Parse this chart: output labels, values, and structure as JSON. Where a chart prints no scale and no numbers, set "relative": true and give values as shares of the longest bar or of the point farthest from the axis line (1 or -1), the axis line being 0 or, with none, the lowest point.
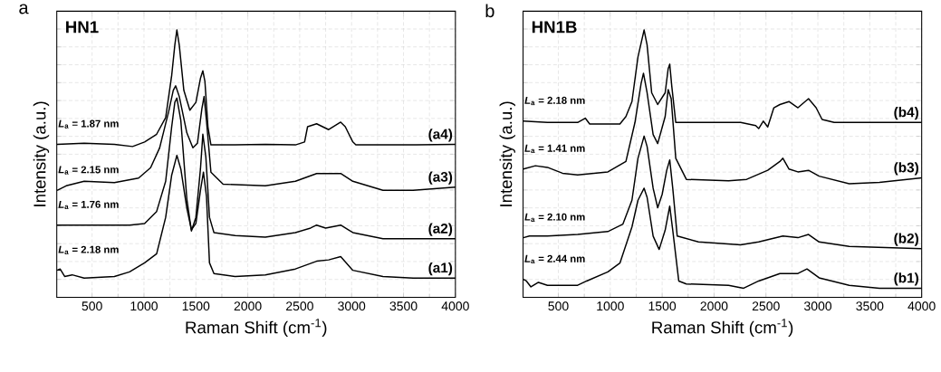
{
  "chart_data": [
    {
      "type": "line",
      "title": "HN1",
      "xlabel": "Raman Shift (cm$^{-1}$)",
      "ylabel": "Intensity (a.u.)",
      "relative": true,
      "xlim": [
        160,
        4000
      ],
      "xticks": [
        500,
        1000,
        1500,
        2000,
        2500,
        3000,
        3500,
        4000
      ],
      "grid": true,
      "series": [
        {
          "name": "(a1)",
          "color": "#000000",
          "x": [
            163,
            192,
            236,
            308,
            424,
            715,
            861,
            1006,
            1122,
            1209,
            1267,
            1317,
            1355,
            1413,
            1457,
            1500,
            1544,
            1573,
            1602,
            1631,
            1674,
            1878,
            2169,
            2459,
            2663,
            2779,
            2895,
            3012,
            3302,
            3593,
            4000
          ],
          "values": [
            0.101,
            0.106,
            0.078,
            0.084,
            0.072,
            0.078,
            0.095,
            0.129,
            0.163,
            0.299,
            0.457,
            0.531,
            0.48,
            0.333,
            0.253,
            0.276,
            0.4,
            0.468,
            0.378,
            0.129,
            0.089,
            0.078,
            0.084,
            0.106,
            0.135,
            0.14,
            0.152,
            0.101,
            0.078,
            0.072,
            0.072
          ]
        },
        {
          "name": "(a2)",
          "color": "#000000",
          "x": [
            163,
            424,
            861,
            1006,
            1122,
            1209,
            1267,
            1297,
            1317,
            1355,
            1413,
            1457,
            1500,
            1544,
            1567,
            1596,
            1631,
            1674,
            1878,
            2169,
            2459,
            2605,
            2663,
            2750,
            2895,
            3012,
            3302,
            4000
          ],
          "values": [
            0.27,
            0.27,
            0.27,
            0.276,
            0.321,
            0.434,
            0.638,
            0.729,
            0.745,
            0.661,
            0.367,
            0.248,
            0.299,
            0.48,
            0.61,
            0.525,
            0.299,
            0.242,
            0.231,
            0.225,
            0.242,
            0.259,
            0.27,
            0.259,
            0.27,
            0.242,
            0.219,
            0.219
          ]
        },
        {
          "name": "(a3)",
          "color": "#000000",
          "x": [
            163,
            250,
            424,
            715,
            948,
            1064,
            1151,
            1238,
            1282,
            1305,
            1340,
            1413,
            1471,
            1515,
            1558,
            1579,
            1602,
            1645,
            1762,
            2169,
            2459,
            2663,
            2895,
            3012,
            3302,
            3593,
            4000
          ],
          "values": [
            0.4,
            0.417,
            0.434,
            0.429,
            0.446,
            0.485,
            0.559,
            0.695,
            0.774,
            0.791,
            0.751,
            0.615,
            0.559,
            0.576,
            0.706,
            0.751,
            0.661,
            0.468,
            0.423,
            0.417,
            0.434,
            0.463,
            0.463,
            0.434,
            0.4,
            0.4,
            0.412
          ]
        },
        {
          "name": "(a4)",
          "color": "#000000",
          "x": [
            163,
            424,
            715,
            890,
            1006,
            1122,
            1209,
            1267,
            1297,
            1317,
            1340,
            1384,
            1442,
            1500,
            1544,
            1567,
            1587,
            1616,
            1645,
            1878,
            2169,
            2459,
            2547,
            2576,
            2663,
            2779,
            2895,
            2939,
            3012,
            3041,
            3331,
            3622,
            4000
          ],
          "values": [
            0.572,
            0.576,
            0.572,
            0.564,
            0.581,
            0.61,
            0.672,
            0.83,
            0.943,
            1.0,
            0.943,
            0.774,
            0.7,
            0.729,
            0.819,
            0.847,
            0.808,
            0.638,
            0.57,
            0.57,
            0.572,
            0.57,
            0.581,
            0.638,
            0.649,
            0.627,
            0.655,
            0.638,
            0.581,
            0.57,
            0.57,
            0.57,
            0.572
          ]
        }
      ],
      "annotations": [
        "a",
        "*L*$_{a}$ = 2.18 nm",
        "*L*$_{a}$ = 1.76 nm",
        "*L*$_{a}$ = 2.15 nm",
        "*L*$_{a}$ = 1.87 nm"
      ]
    },
    {
      "type": "line",
      "title": "HN1B",
      "xlabel": "Raman Shift (cm$^{-1}$)",
      "ylabel": "Intensity (a.u.)",
      "relative": true,
      "xlim": [
        160,
        4000
      ],
      "xticks": [
        500,
        1000,
        1500,
        2000,
        2500,
        3000,
        3500,
        4000
      ],
      "grid": true,
      "series": [
        {
          "name": "(b1)",
          "color": "#000000",
          "x": [
            163,
            192,
            236,
            308,
            395,
            686,
            773,
            977,
            1093,
            1209,
            1267,
            1326,
            1355,
            1413,
            1471,
            1529,
            1573,
            1602,
            1660,
            1733,
            2140,
            2285,
            2430,
            2634,
            2808,
            2895,
            3012,
            3302,
            3593,
            4000
          ],
          "values": [
            0.067,
            0.061,
            0.039,
            0.056,
            0.045,
            0.045,
            0.061,
            0.095,
            0.128,
            0.263,
            0.363,
            0.408,
            0.374,
            0.229,
            0.179,
            0.251,
            0.341,
            0.251,
            0.061,
            0.05,
            0.045,
            0.034,
            0.061,
            0.089,
            0.089,
            0.106,
            0.073,
            0.045,
            0.034,
            0.034
          ]
        },
        {
          "name": "(b2)",
          "color": "#000000",
          "x": [
            163,
            221,
            395,
            686,
            977,
            1122,
            1209,
            1267,
            1326,
            1355,
            1413,
            1457,
            1500,
            1544,
            1573,
            1602,
            1645,
            1849,
            2256,
            2430,
            2663,
            2808,
            2910,
            3012,
            3302,
            4000
          ],
          "values": [
            0.223,
            0.229,
            0.229,
            0.235,
            0.246,
            0.274,
            0.363,
            0.52,
            0.603,
            0.564,
            0.408,
            0.335,
            0.385,
            0.475,
            0.514,
            0.408,
            0.229,
            0.207,
            0.196,
            0.207,
            0.229,
            0.223,
            0.235,
            0.207,
            0.19,
            0.182
          ]
        },
        {
          "name": "(b3)",
          "color": "#000000",
          "x": [
            163,
            279,
            395,
            540,
            686,
            977,
            1151,
            1238,
            1297,
            1320,
            1355,
            1413,
            1457,
            1529,
            1558,
            1587,
            1631,
            1733,
            2140,
            2314,
            2517,
            2634,
            2663,
            2721,
            2808,
            2910,
            3012,
            3302,
            3593,
            4000
          ],
          "values": [
            0.48,
            0.492,
            0.486,
            0.464,
            0.458,
            0.469,
            0.508,
            0.654,
            0.799,
            0.838,
            0.765,
            0.609,
            0.575,
            0.676,
            0.777,
            0.743,
            0.52,
            0.441,
            0.436,
            0.441,
            0.475,
            0.508,
            0.52,
            0.48,
            0.469,
            0.475,
            0.453,
            0.425,
            0.43,
            0.447
          ]
        },
        {
          "name": "(b4)",
          "color": "#000000",
          "x": [
            163,
            395,
            686,
            759,
            802,
            977,
            1093,
            1151,
            1209,
            1267,
            1326,
            1355,
            1399,
            1457,
            1529,
            1558,
            1573,
            1593,
            1631,
            1849,
            2256,
            2401,
            2430,
            2474,
            2517,
            2576,
            2634,
            2721,
            2808,
            2910,
            2983,
            3041,
            3157,
            3593,
            4000
          ],
          "values": [
            0.659,
            0.654,
            0.654,
            0.67,
            0.648,
            0.648,
            0.648,
            0.676,
            0.732,
            0.899,
            1.0,
            0.944,
            0.765,
            0.721,
            0.765,
            0.855,
            0.872,
            0.788,
            0.654,
            0.654,
            0.654,
            0.642,
            0.631,
            0.659,
            0.637,
            0.709,
            0.721,
            0.732,
            0.709,
            0.743,
            0.709,
            0.665,
            0.654,
            0.654,
            0.654
          ]
        }
      ],
      "annotations": [
        "b",
        "*L*$_{a}$ = 2.44 nm",
        "*L*$_{a}$ = 2.10 nm",
        "*L*$_{a}$ = 1.41 nm",
        "*L*$_{a}$ = 2.18 nm"
      ]
    }
  ]
}
